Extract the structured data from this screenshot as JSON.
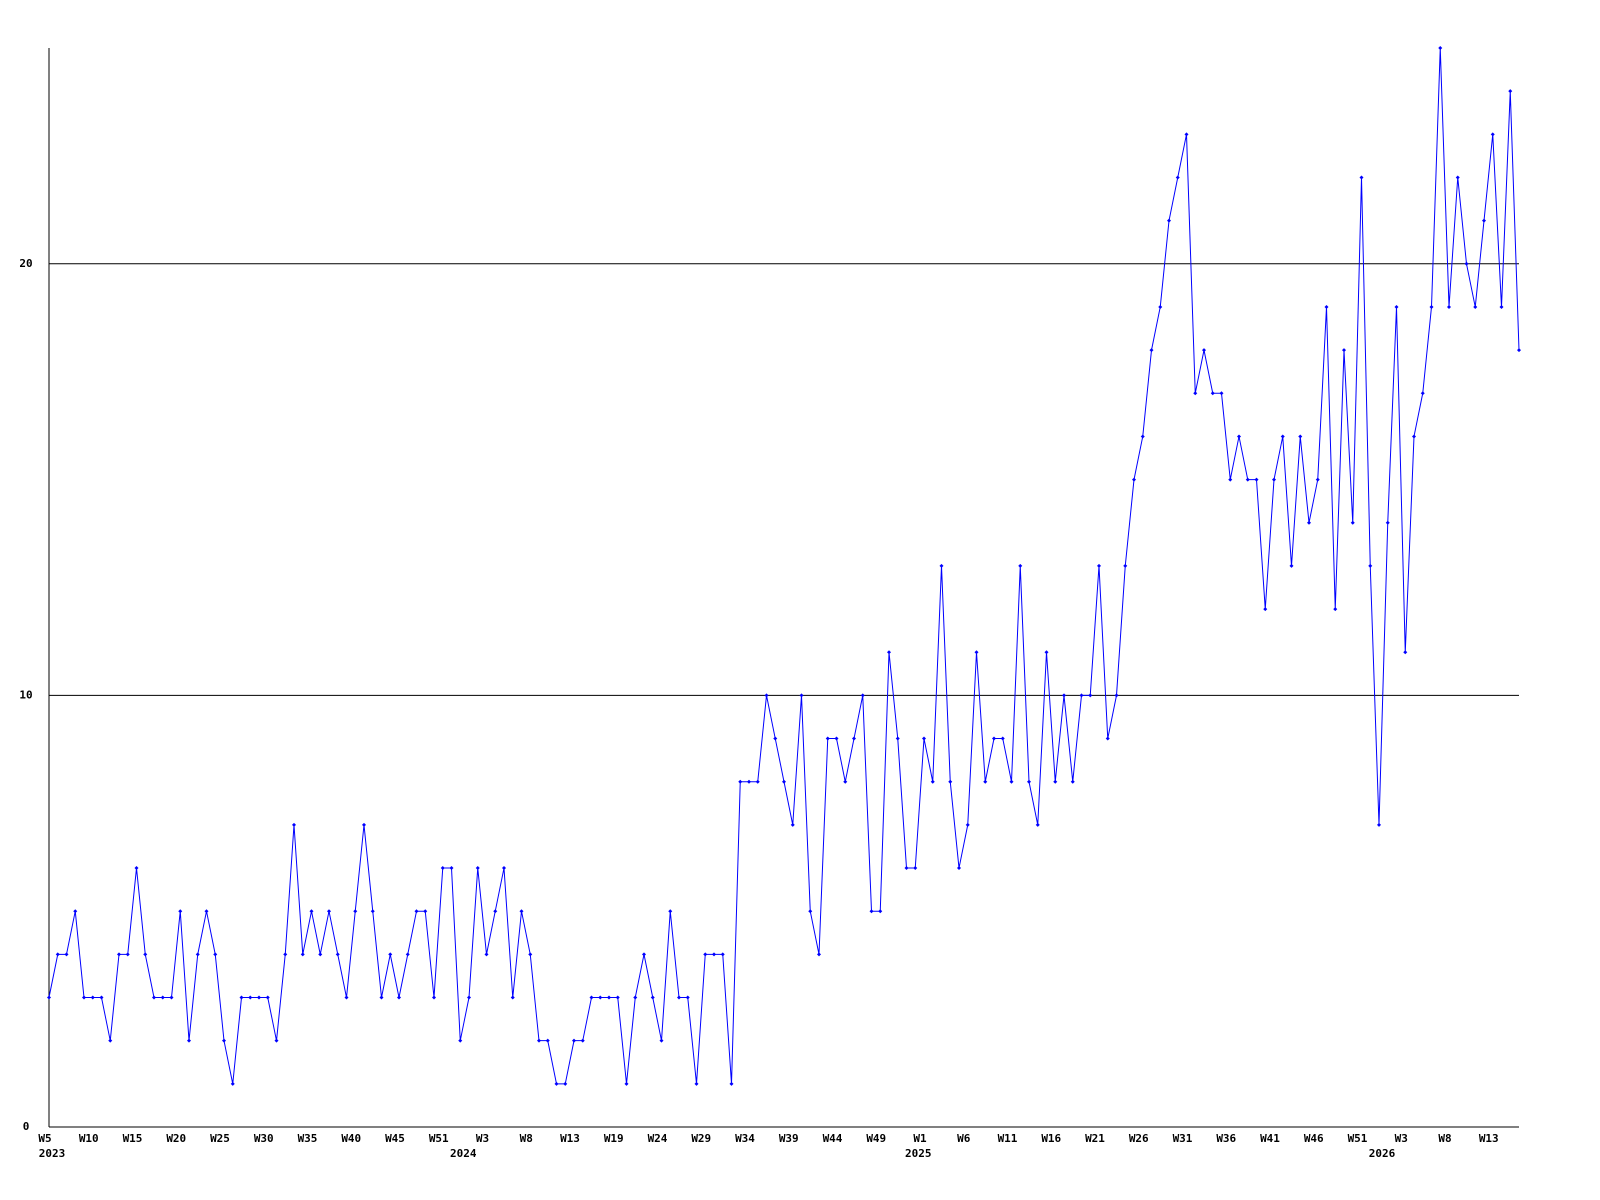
{
  "chart_data": {
    "type": "line",
    "categories": [
      "W5",
      null,
      null,
      null,
      null,
      "W10",
      null,
      null,
      null,
      null,
      "W15",
      null,
      null,
      null,
      null,
      "W20",
      null,
      null,
      null,
      null,
      "W25",
      null,
      null,
      null,
      null,
      "W30",
      null,
      null,
      null,
      null,
      "W35",
      null,
      null,
      null,
      null,
      "W40",
      null,
      null,
      null,
      null,
      "W45",
      null,
      null,
      null,
      null,
      "W51",
      null,
      null,
      null,
      null,
      "W3",
      null,
      null,
      null,
      null,
      "W8",
      null,
      null,
      null,
      null,
      "W13",
      null,
      null,
      null,
      null,
      "W19",
      null,
      null,
      null,
      null,
      "W24",
      null,
      null,
      null,
      null,
      "W29",
      null,
      null,
      null,
      null,
      "W34",
      null,
      null,
      null,
      null,
      "W39",
      null,
      null,
      null,
      null,
      "W44",
      null,
      null,
      null,
      null,
      "W49",
      null,
      null,
      null,
      null,
      "W1",
      null,
      null,
      null,
      null,
      "W6",
      null,
      null,
      null,
      null,
      "W11",
      null,
      null,
      null,
      null,
      "W16",
      null,
      null,
      null,
      null,
      "W21",
      null,
      null,
      null,
      null,
      "W26",
      null,
      null,
      null,
      null,
      "W31",
      null,
      null,
      null,
      null,
      "W36",
      null,
      null,
      null,
      null,
      "W41",
      null,
      null,
      null,
      null,
      "W46",
      null,
      null,
      null,
      null,
      "W51",
      null,
      null,
      null,
      null,
      "W3",
      null,
      null,
      null,
      null,
      "W8",
      null,
      null,
      null,
      null,
      "W13",
      null,
      null,
      null
    ],
    "year_labels": [
      "2023",
      null,
      null,
      null,
      null,
      null,
      null,
      null,
      null,
      null,
      null,
      null,
      null,
      null,
      null,
      null,
      null,
      null,
      null,
      null,
      null,
      null,
      null,
      null,
      null,
      null,
      null,
      null,
      null,
      null,
      null,
      null,
      null,
      null,
      null,
      null,
      null,
      null,
      null,
      null,
      null,
      null,
      null,
      null,
      null,
      null,
      null,
      "2024",
      null,
      null,
      null,
      null,
      null,
      null,
      null,
      null,
      null,
      null,
      null,
      null,
      null,
      null,
      null,
      null,
      null,
      null,
      null,
      null,
      null,
      null,
      null,
      null,
      null,
      null,
      null,
      null,
      null,
      null,
      null,
      null,
      null,
      null,
      null,
      null,
      null,
      null,
      null,
      null,
      null,
      null,
      null,
      null,
      null,
      null,
      null,
      null,
      null,
      null,
      null,
      "2025",
      null,
      null,
      null,
      null,
      null,
      null,
      null,
      null,
      null,
      null,
      null,
      null,
      null,
      null,
      null,
      null,
      null,
      null,
      null,
      null,
      null,
      null,
      null,
      null,
      null,
      null,
      null,
      null,
      null,
      null,
      null,
      null,
      null,
      null,
      null,
      null,
      null,
      null,
      null,
      null,
      null,
      null,
      null,
      null,
      null,
      null,
      null,
      null,
      null,
      null,
      null,
      null,
      "2026",
      null,
      null,
      null,
      null,
      null,
      null,
      null,
      null,
      null,
      null,
      null,
      null,
      null,
      null,
      null,
      null
    ],
    "series": [
      {
        "color": "#0000ff",
        "values": [
          3,
          4,
          4,
          5,
          3,
          3,
          3,
          2,
          4,
          4,
          6,
          4,
          3,
          3,
          3,
          5,
          2,
          4,
          5,
          4,
          2,
          1,
          3,
          3,
          3,
          3,
          2,
          4,
          7,
          4,
          5,
          4,
          5,
          4,
          3,
          5,
          7,
          5,
          3,
          4,
          3,
          4,
          5,
          5,
          3,
          6,
          6,
          2,
          3,
          6,
          4,
          5,
          6,
          3,
          5,
          4,
          2,
          2,
          1,
          1,
          2,
          2,
          3,
          3,
          3,
          3,
          1,
          3,
          4,
          3,
          2,
          5,
          3,
          3,
          1,
          4,
          4,
          4,
          1,
          8,
          8,
          8,
          10,
          9,
          8,
          7,
          10,
          5,
          4,
          9,
          9,
          8,
          9,
          10,
          5,
          5,
          11,
          9,
          6,
          6,
          9,
          8,
          13,
          8,
          6,
          7,
          11,
          8,
          9,
          9,
          8,
          13,
          8,
          7,
          11,
          8,
          10,
          8,
          10,
          10,
          13,
          9,
          10,
          13,
          15,
          16,
          18,
          19,
          21,
          22,
          23,
          17,
          18,
          17,
          17,
          15,
          16,
          15,
          15,
          12,
          15,
          16,
          13,
          16,
          14,
          15,
          19,
          12,
          18,
          14,
          22,
          13,
          7,
          14,
          19,
          11,
          16,
          17,
          19,
          25,
          19,
          22,
          20,
          19,
          21,
          23,
          19,
          24,
          18
        ]
      }
    ],
    "ylim": [
      0,
      25
    ],
    "yticks": [
      0,
      10,
      20
    ],
    "grid": true
  }
}
